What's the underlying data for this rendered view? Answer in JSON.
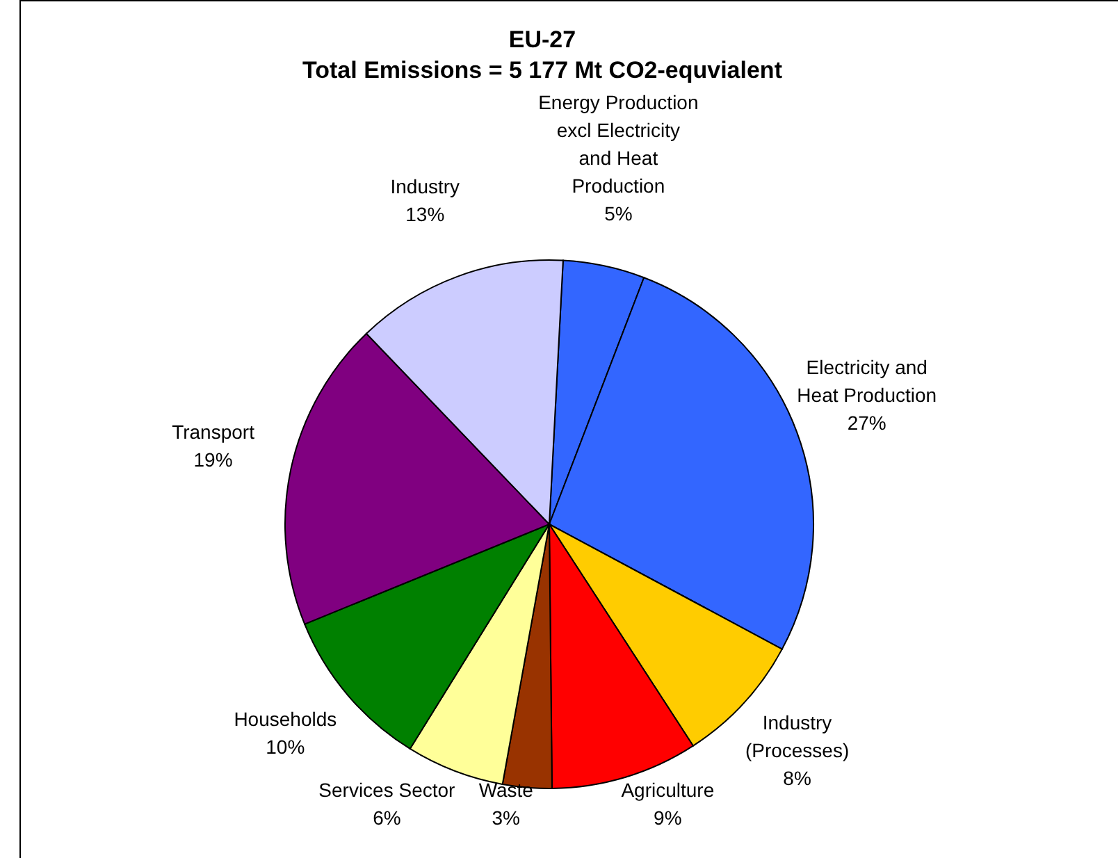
{
  "chart_data": {
    "type": "pie",
    "title": "EU-27\nTotal Emissions = 5 177 Mt CO2-equvialent",
    "categories": [
      "Energy Production excl Electricity and Heat Production",
      "Electricity and Heat Production",
      "Industry (Processes)",
      "Agriculture",
      "Waste",
      "Services Sector",
      "Households",
      "Transport",
      "Industry"
    ],
    "values": [
      5,
      27,
      8,
      9,
      3,
      6,
      10,
      19,
      13
    ],
    "value_labels": [
      "5%",
      "27%",
      "8%",
      "9%",
      "3%",
      "6%",
      "10%",
      "19%",
      "13%"
    ],
    "colors": [
      "#3366ff",
      "#3366ff",
      "#ffcc00",
      "#ff0000",
      "#993300",
      "#ffff99",
      "#008000",
      "#800080",
      "#ccccff"
    ]
  }
}
